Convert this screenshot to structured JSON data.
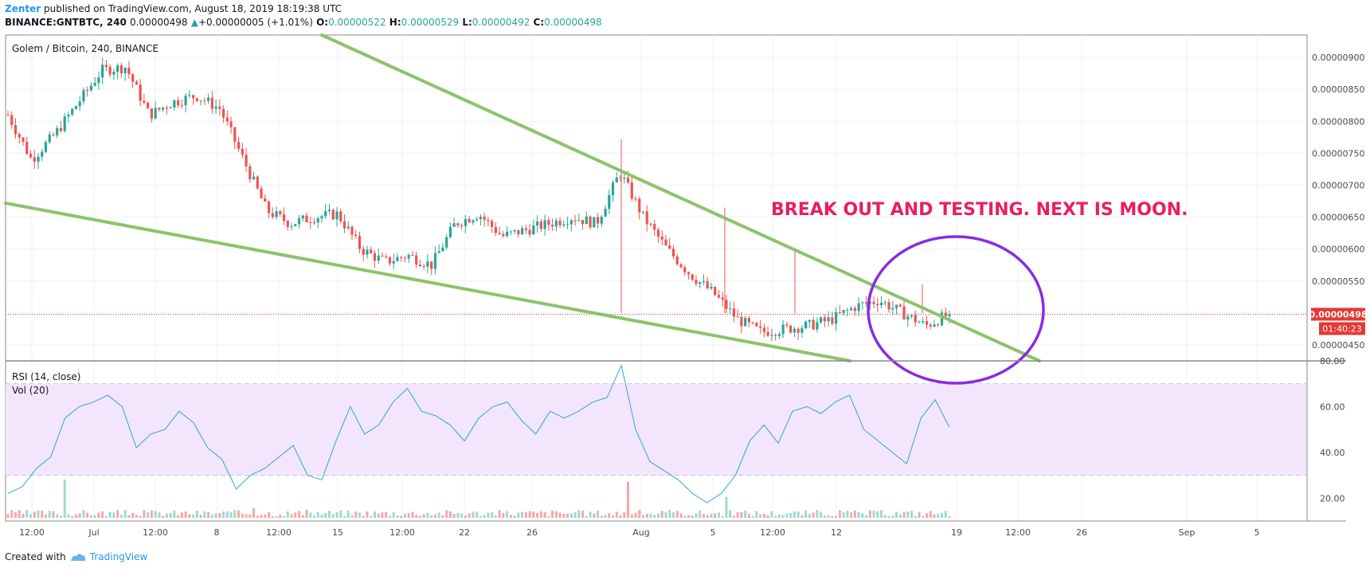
{
  "header": {
    "author": "Zenter",
    "published_text": "published on TradingView.com, August 18, 2019 18:19:38 UTC",
    "symbol": "BINANCE:GNTBTC, 240",
    "last": "0.00000498",
    "change": "+0.00000005 (+1.01%)",
    "open_label": "O:",
    "open": "0.00000522",
    "high_label": "H:",
    "high": "0.00000529",
    "low_label": "L:",
    "low": "0.00000492",
    "close_label": "C:",
    "close": "0.00000498"
  },
  "footer": {
    "created_with": "Created with",
    "brand": "TradingView"
  },
  "colors": {
    "up": "#26a69a",
    "down": "#ef5350",
    "trendline": "#8bc36a",
    "annotation_text": "#e91e63",
    "circle": "#8a2be2",
    "rsi_line": "#2aa6d9",
    "rsi_band": "#f3e5fc",
    "price_tag": "#e53935"
  },
  "chart_data": [
    {
      "type": "candlestick",
      "title": "Golem / Bitcoin, 240, BINANCE",
      "ylim": [
        4.25e-06,
        9.35e-06
      ],
      "y_ticks": [
        "0.00000900",
        "0.00000850",
        "0.00000800",
        "0.00000750",
        "0.00000700",
        "0.00000650",
        "0.00000600",
        "0.00000550",
        "0.00000500",
        "0.00000450"
      ],
      "x_ticks": [
        "12:00",
        "Jul",
        "12:00",
        "8",
        "12:00",
        "15",
        "12:00",
        "22",
        "26",
        "Aug",
        "5",
        "12:00",
        "12",
        "19",
        "12:00",
        "26",
        "Sep",
        "5"
      ],
      "close_path_samples": [
        8.1e-06,
        7.4e-06,
        7.8e-06,
        8.3e-06,
        8.8e-06,
        8.85e-06,
        8.1e-06,
        8.3e-06,
        8.4e-06,
        8.2e-06,
        7.4e-06,
        6.6e-06,
        6.4e-06,
        6.5e-06,
        6.55e-06,
        6e-06,
        5.8e-06,
        5.9e-06,
        5.75e-06,
        6.4e-06,
        6.55e-06,
        6.2e-06,
        6.3e-06,
        6.4e-06,
        6.5e-06,
        6.4e-06,
        7.2e-06,
        6.5e-06,
        6e-06,
        5.6e-06,
        5.3e-06,
        4.9e-06,
        4.7e-06,
        4.75e-06,
        4.8e-06,
        4.9e-06,
        5.1e-06,
        5.2e-06,
        5e-06,
        4.8e-06,
        4.98e-06
      ],
      "current_price_label": "0.00000498",
      "countdown_label": "01:40:23",
      "annotation": "BREAK OUT AND TESTING. NEXT IS MOON."
    },
    {
      "type": "line",
      "title": "RSI (14, close)",
      "ylim": [
        10,
        80
      ],
      "y_ticks": [
        "80.00",
        "60.00",
        "40.00",
        "20.00"
      ],
      "band": [
        30,
        70
      ],
      "values": [
        22,
        25,
        33,
        38,
        55,
        60,
        62,
        65,
        60,
        42,
        48,
        50,
        58,
        53,
        42,
        37,
        24,
        30,
        33,
        38,
        43,
        30,
        28,
        45,
        60,
        48,
        52,
        62,
        68,
        58,
        56,
        52,
        45,
        55,
        60,
        62,
        54,
        48,
        58,
        55,
        58,
        62,
        64,
        78,
        50,
        36,
        32,
        28,
        22,
        18,
        22,
        30,
        45,
        52,
        44,
        58,
        60,
        57,
        62,
        65,
        50,
        45,
        40,
        35,
        55,
        63,
        51
      ]
    },
    {
      "type": "bar",
      "title": "Vol (20)"
    }
  ]
}
